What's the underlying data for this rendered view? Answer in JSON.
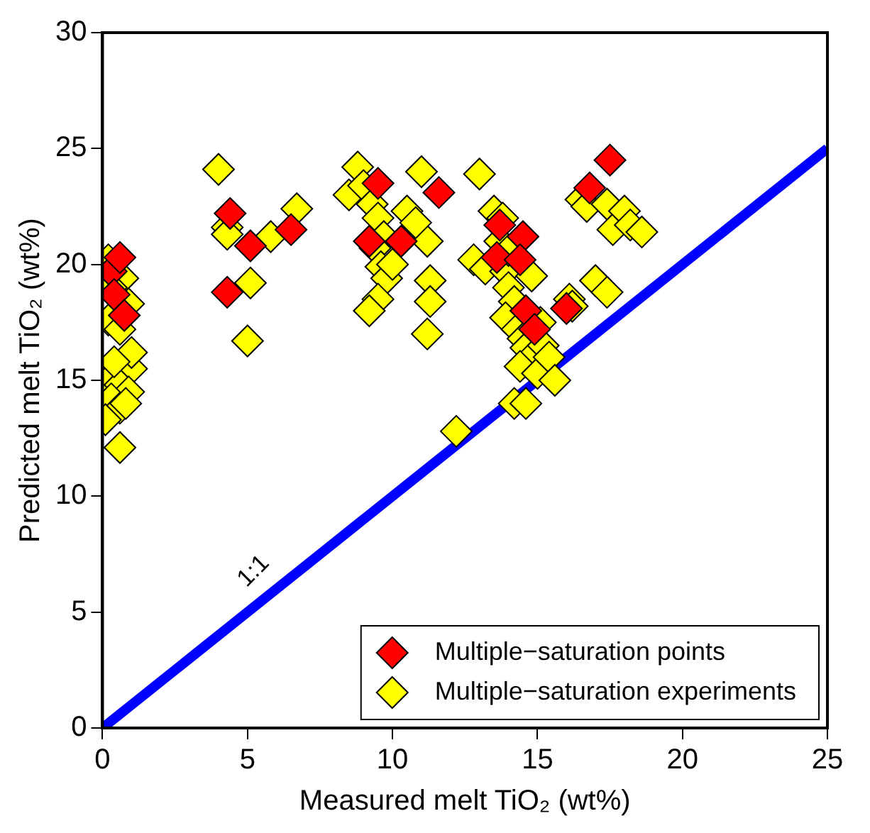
{
  "chart_data": {
    "type": "scatter",
    "xlabel": "Measured melt TiO₂ (wt%)",
    "ylabel": "Predicted melt TiO₂ (wt%)",
    "xlim": [
      0,
      25
    ],
    "ylim": [
      0,
      30
    ],
    "xticks": [
      0,
      5,
      10,
      15,
      20,
      25
    ],
    "yticks": [
      0,
      5,
      10,
      15,
      20,
      25,
      30
    ],
    "grid": false,
    "legend": "bottom right",
    "marker": "diamond",
    "annotations": [
      {
        "text": "1:1",
        "x": 5.9,
        "y": 5.9
      }
    ],
    "series": [
      {
        "type": "line",
        "color": "#0000ff",
        "marker": "none",
        "x": [
          0,
          25
        ],
        "values": [
          0,
          25
        ]
      },
      {
        "name": "Multiple−saturation experiments",
        "color": "#ffff00",
        "x": [
          0.2,
          0.7,
          0.3,
          0.9,
          0.2,
          0.6,
          1.0,
          0.2,
          0.6,
          0.9,
          0.3,
          0.6,
          0.1,
          0.6,
          1.0,
          0.4,
          0.8,
          4.0,
          4.3,
          5.1,
          5.0,
          4.3,
          5.8,
          6.7,
          8.5,
          8.8,
          9.0,
          9.3,
          9.5,
          9.7,
          9.4,
          9.6,
          9.8,
          9.5,
          9.2,
          10.0,
          10.5,
          11.0,
          11.2,
          11.3,
          11.3,
          11.2,
          10.8,
          12.2,
          13.0,
          12.8,
          13.2,
          13.5,
          13.7,
          13.9,
          14.0,
          14.2,
          13.9,
          14.3,
          14.5,
          14.6,
          14.8,
          14.4,
          15.0,
          15.2,
          15.4,
          15.6,
          14.2,
          14.6,
          15.1,
          16.1,
          16.2,
          17.0,
          16.5,
          16.7,
          17.4,
          17.6,
          18.0,
          18.2,
          18.6,
          17.4,
          14.8,
          14.0,
          13.8
        ],
        "values": [
          20.2,
          19.4,
          19.0,
          18.3,
          17.6,
          17.2,
          15.5,
          15.0,
          14.8,
          14.5,
          14.2,
          13.8,
          13.3,
          12.1,
          16.2,
          15.8,
          14.0,
          24.1,
          21.6,
          19.2,
          16.7,
          21.3,
          21.2,
          22.4,
          23.0,
          24.2,
          23.4,
          22.6,
          22.0,
          21.2,
          20.7,
          19.9,
          19.4,
          18.5,
          18.0,
          20.0,
          22.3,
          24.0,
          21.0,
          19.3,
          18.4,
          17.0,
          21.8,
          12.8,
          23.9,
          20.2,
          19.8,
          22.3,
          21.0,
          19.7,
          19.0,
          18.4,
          17.7,
          17.2,
          16.8,
          16.4,
          16.0,
          15.6,
          15.3,
          16.5,
          16.0,
          15.0,
          14.0,
          14.0,
          17.5,
          18.5,
          18.2,
          19.3,
          22.8,
          22.5,
          22.6,
          21.5,
          22.3,
          21.7,
          21.4,
          18.8,
          19.5,
          20.6,
          22.0
        ]
      },
      {
        "name": "Multiple−saturation points",
        "color": "#ff0000",
        "x": [
          0.3,
          0.4,
          0.75,
          0.6,
          4.4,
          4.3,
          5.1,
          6.5,
          9.5,
          9.2,
          10.3,
          11.6,
          13.7,
          13.6,
          14.5,
          14.4,
          14.6,
          14.9,
          16.0,
          16.8,
          17.5
        ],
        "values": [
          19.7,
          18.7,
          17.8,
          20.3,
          22.2,
          18.8,
          20.8,
          21.5,
          23.5,
          21.0,
          21.0,
          23.1,
          21.7,
          20.3,
          21.2,
          20.2,
          18.0,
          17.2,
          18.1,
          23.3,
          24.5
        ]
      }
    ]
  }
}
